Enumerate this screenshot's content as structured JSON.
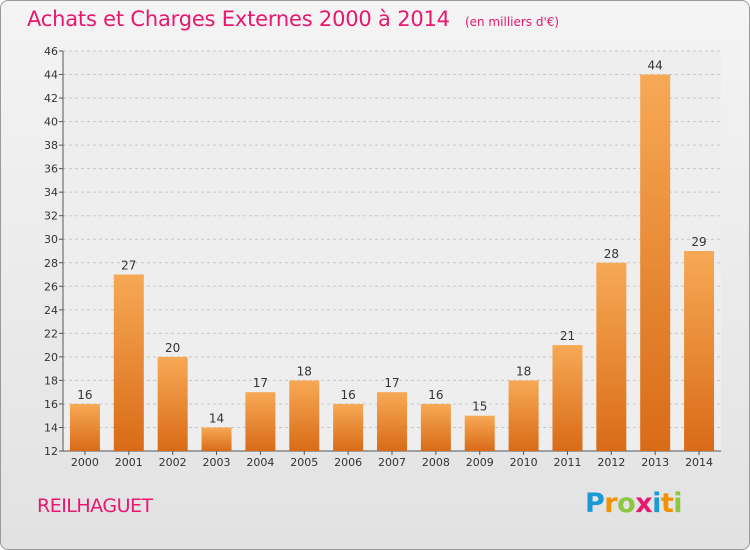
{
  "header": {
    "title": "Achats et Charges Externes 2000 à 2014",
    "subtitle": "(en milliers d'€)"
  },
  "location": "REILHAGUET",
  "logo": {
    "letters": [
      "P",
      "r",
      "o",
      "x",
      "i",
      "t",
      "i"
    ],
    "colors": [
      "#1b9ad6",
      "#f39200",
      "#8dc63f",
      "#e8176f",
      "#1b9ad6",
      "#f39200",
      "#8dc63f"
    ]
  },
  "colors": {
    "bar_top": "#f7a955",
    "bar_bottom": "#d96b17",
    "text_accent": "#e8176f"
  },
  "chart_data": {
    "type": "bar",
    "title": "Achats et Charges Externes 2000 à 2014",
    "subtitle": "(en milliers d'€)",
    "categories": [
      "2000",
      "2001",
      "2002",
      "2003",
      "2004",
      "2005",
      "2006",
      "2007",
      "2008",
      "2009",
      "2010",
      "2011",
      "2012",
      "2013",
      "2014"
    ],
    "values": [
      16,
      27,
      20,
      14,
      17,
      18,
      16,
      17,
      16,
      15,
      18,
      21,
      28,
      44,
      29
    ],
    "ylim": [
      12,
      46
    ],
    "yticks": [
      12,
      14,
      16,
      18,
      20,
      22,
      24,
      26,
      28,
      30,
      32,
      34,
      36,
      38,
      40,
      42,
      44,
      46
    ],
    "grid": true
  }
}
